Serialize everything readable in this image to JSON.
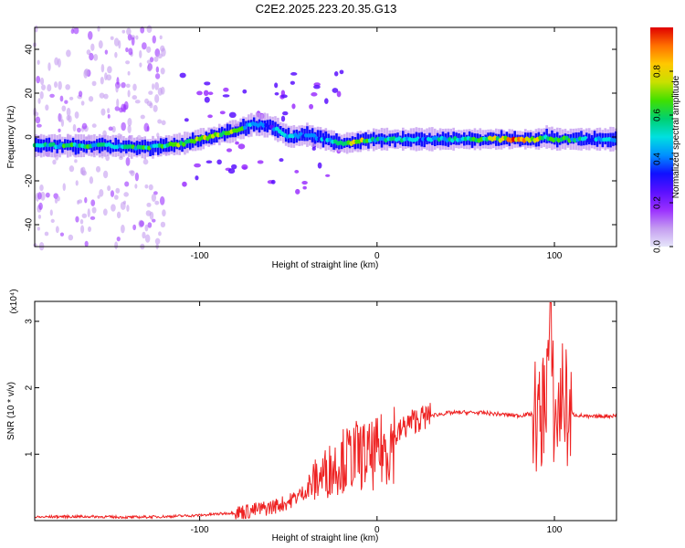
{
  "title": "C2E2.2025.223.20.35.G13",
  "colors": {
    "snr_line": "#ee2222",
    "background": "#ffffff",
    "colormap": [
      "#e6e6fa",
      "#c49cf0",
      "#9b30ff",
      "#5a10ff",
      "#1010ff",
      "#0090ff",
      "#00e0e0",
      "#00d070",
      "#40e000",
      "#c8e000",
      "#ffc800",
      "#ff7000",
      "#e00000"
    ]
  },
  "chart_data": [
    {
      "type": "heatmap",
      "title": "C2E2.2025.223.20.35.G13",
      "xlabel": "Height of straight line (km)",
      "ylabel": "Frequency (Hz)",
      "xlim": [
        -193,
        135
      ],
      "ylim": [
        -50,
        50
      ],
      "x_ticks": [
        -100,
        0,
        100
      ],
      "x_tick_labels": [
        "-100",
        "0",
        "100"
      ],
      "y_ticks": [
        -40,
        -20,
        0,
        20,
        40
      ],
      "y_tick_labels": [
        "-40",
        "-20",
        "0",
        "20",
        "40"
      ],
      "colorbar": {
        "label": "Normalized spectral amplitude",
        "range": [
          0,
          1
        ],
        "ticks": [
          0.0,
          0.2,
          0.4,
          0.6,
          0.8
        ],
        "tick_labels": [
          "0.0",
          "0.2",
          "0.4",
          "0.6",
          "0.8"
        ]
      },
      "ridge": {
        "x": [
          -190,
          -170,
          -150,
          -130,
          -110,
          -95,
          -80,
          -70,
          -60,
          -50,
          -40,
          -30,
          -20,
          -10,
          0,
          20,
          40,
          60,
          80,
          90,
          95,
          100,
          110,
          120,
          135
        ],
        "freq": [
          -4,
          -4,
          -4,
          -5,
          -3,
          0,
          3,
          6,
          5,
          0,
          1,
          -1,
          -3,
          -2,
          -1,
          -1,
          -1,
          -1,
          -1,
          -1,
          0,
          -1,
          -1,
          -1,
          -1
        ],
        "amplitude": [
          0.5,
          0.55,
          0.5,
          0.55,
          0.6,
          0.75,
          0.65,
          0.45,
          0.35,
          0.5,
          0.45,
          0.45,
          0.7,
          0.75,
          0.55,
          0.45,
          0.45,
          0.6,
          0.9,
          0.75,
          0.45,
          0.6,
          0.55,
          0.45,
          0.4
        ]
      }
    },
    {
      "type": "line",
      "xlabel": "Height of straight line (km)",
      "ylabel": "SNR (10 * v/v)",
      "y_multiplier": "(x10⁴)",
      "xlim": [
        -193,
        135
      ],
      "ylim": [
        0,
        3.3
      ],
      "x_ticks": [
        -100,
        0,
        100
      ],
      "x_tick_labels": [
        "-100",
        "0",
        "100"
      ],
      "y_ticks": [
        1,
        2,
        3
      ],
      "y_tick_labels": [
        "1",
        "2",
        "3"
      ],
      "series": [
        {
          "x": [
            -193,
            -180,
            -160,
            -140,
            -120,
            -100,
            -90,
            -80,
            -70,
            -60,
            -50,
            -40,
            -35,
            -30,
            -25,
            -20,
            -15,
            -10,
            -5,
            0,
            5,
            10,
            15,
            20,
            30,
            40,
            50,
            60,
            70,
            80,
            85,
            90,
            92,
            95,
            98,
            100,
            102,
            105,
            108,
            110,
            115,
            120,
            125,
            135
          ],
          "y": [
            0.05,
            0.06,
            0.06,
            0.05,
            0.06,
            0.08,
            0.1,
            0.12,
            0.15,
            0.2,
            0.28,
            0.45,
            0.6,
            0.7,
            0.8,
            0.9,
            0.95,
            1.0,
            0.95,
            1.0,
            1.1,
            1.25,
            1.4,
            1.5,
            1.58,
            1.62,
            1.63,
            1.62,
            1.6,
            1.58,
            1.6,
            1.6,
            1.4,
            2.0,
            2.9,
            1.4,
            1.6,
            2.0,
            1.5,
            1.6,
            1.58,
            1.56,
            1.57,
            1.58
          ]
        }
      ]
    }
  ]
}
